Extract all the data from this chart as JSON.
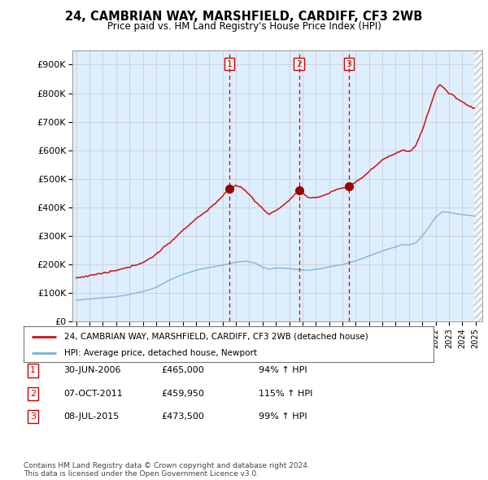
{
  "title": "24, CAMBRIAN WAY, MARSHFIELD, CARDIFF, CF3 2WB",
  "subtitle": "Price paid vs. HM Land Registry's House Price Index (HPI)",
  "ylim": [
    0,
    950000
  ],
  "yticks": [
    0,
    100000,
    200000,
    300000,
    400000,
    500000,
    600000,
    700000,
    800000,
    900000
  ],
  "ytick_labels": [
    "£0",
    "£100K",
    "£200K",
    "£300K",
    "£400K",
    "£500K",
    "£600K",
    "£700K",
    "£800K",
    "£900K"
  ],
  "hpi_color": "#7bafd4",
  "price_color": "#cc1111",
  "marker_color": "#990000",
  "vline_color": "#cc0000",
  "grid_color": "#c8c8c8",
  "chart_bg": "#ddeeff",
  "bg_color": "#ffffff",
  "legend_label_price": "24, CAMBRIAN WAY, MARSHFIELD, CARDIFF, CF3 2WB (detached house)",
  "legend_label_hpi": "HPI: Average price, detached house, Newport",
  "transactions": [
    {
      "num": 1,
      "x_year": 2006.5,
      "price": 465000,
      "date_str": "30-JUN-2006",
      "price_str": "£465,000",
      "hpi_str": "94% ↑ HPI"
    },
    {
      "num": 2,
      "x_year": 2011.75,
      "price": 459950,
      "date_str": "07-OCT-2011",
      "price_str": "£459,950",
      "hpi_str": "115% ↑ HPI"
    },
    {
      "num": 3,
      "x_year": 2015.5,
      "price": 473500,
      "date_str": "08-JUL-2015",
      "price_str": "£473,500",
      "hpi_str": "99% ↑ HPI"
    }
  ],
  "footer": "Contains HM Land Registry data © Crown copyright and database right 2024.\nThis data is licensed under the Open Government Licence v3.0.",
  "xlim_start": 1994.7,
  "xlim_end": 2025.5,
  "hatch_start": 2024.917
}
